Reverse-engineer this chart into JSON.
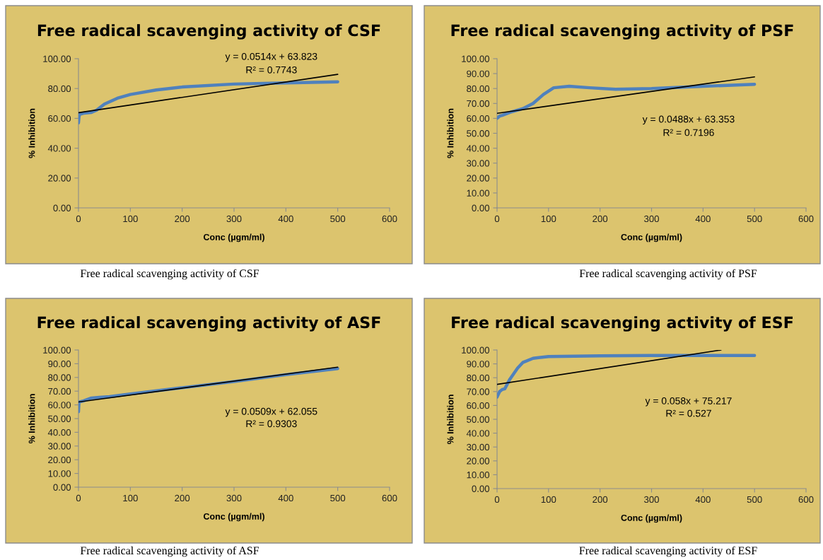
{
  "chart_data": [
    {
      "type": "line",
      "title": "Free radical scavenging activity of CSF",
      "xlabel": "Conc (µgm/ml)",
      "ylabel": "% Inhibition",
      "xlim": [
        0,
        600
      ],
      "xticks": [
        0,
        100,
        200,
        300,
        400,
        500,
        600
      ],
      "ylim": [
        0,
        100
      ],
      "yticks": [
        {
          "value": 0,
          "label": "0.00"
        },
        {
          "value": 20,
          "label": "20.00"
        },
        {
          "value": 40,
          "label": "40.00"
        },
        {
          "value": 60,
          "label": "60.00"
        },
        {
          "value": 80,
          "label": "80.00"
        },
        {
          "value": 100,
          "label": "100.00"
        }
      ],
      "series": [
        {
          "color": "#4f81bd",
          "x": [
            0,
            1,
            2,
            5,
            10,
            25,
            35,
            50,
            75,
            100,
            150,
            200,
            300,
            400,
            500
          ],
          "values": [
            57,
            61,
            62.5,
            63,
            63.5,
            64,
            65.5,
            69.5,
            73.5,
            76,
            79,
            81,
            83,
            83.8,
            84.5
          ]
        },
        {
          "type": "line",
          "color": "#000000",
          "x": [
            0,
            500
          ],
          "values": [
            63.8,
            89.5
          ]
        }
      ],
      "annotations": [
        "y = 0.0514x + 63.823",
        "R² = 0.7743",
        "Free radical scavenging activity of CSF"
      ]
    },
    {
      "type": "line",
      "title": "Free radical scavenging activity of PSF",
      "xlabel": "Conc (µgm/ml)",
      "ylabel": "% Inhibition",
      "xlim": [
        0,
        600
      ],
      "xticks": [
        0,
        100,
        200,
        300,
        400,
        500,
        600
      ],
      "ylim": [
        0,
        100
      ],
      "yticks": [
        {
          "value": 0,
          "label": "0.00"
        },
        {
          "value": 10,
          "label": "10.00"
        },
        {
          "value": 20,
          "label": "20.00"
        },
        {
          "value": 30,
          "label": "30.00"
        },
        {
          "value": 40,
          "label": "40.00"
        },
        {
          "value": 50,
          "label": "50.00"
        },
        {
          "value": 60,
          "label": "60.00"
        },
        {
          "value": 70,
          "label": "70.00"
        },
        {
          "value": 80,
          "label": "80.00"
        },
        {
          "value": 90,
          "label": "90.00"
        },
        {
          "value": 100,
          "label": "100.00"
        }
      ],
      "series": [
        {
          "color": "#4f81bd",
          "x": [
            0,
            5,
            10,
            25,
            50,
            70,
            90,
            110,
            140,
            180,
            230,
            300,
            400,
            500
          ],
          "values": [
            60,
            61.5,
            62,
            64,
            66.5,
            70,
            76,
            80.5,
            81.5,
            80.5,
            79.5,
            80,
            81.5,
            82.8
          ]
        },
        {
          "type": "line",
          "color": "#000000",
          "x": [
            0,
            500
          ],
          "values": [
            63.4,
            87.8
          ]
        }
      ],
      "annotations": [
        "y = 0.0488x + 63.353",
        "R² = 0.7196",
        "Free radical scavenging activity of PSF"
      ]
    },
    {
      "type": "line",
      "title": "Free radical scavenging activity of ASF",
      "xlabel": "Conc (µgm/ml)",
      "ylabel": "% Inhibition",
      "xlim": [
        0,
        600
      ],
      "xticks": [
        0,
        100,
        200,
        300,
        400,
        500,
        600
      ],
      "ylim": [
        0,
        100
      ],
      "yticks": [
        {
          "value": 0,
          "label": "0.00"
        },
        {
          "value": 10,
          "label": "10.00"
        },
        {
          "value": 20,
          "label": "20.00"
        },
        {
          "value": 30,
          "label": "30.00"
        },
        {
          "value": 40,
          "label": "40.00"
        },
        {
          "value": 50,
          "label": "50.00"
        },
        {
          "value": 60,
          "label": "60.00"
        },
        {
          "value": 70,
          "label": "70.00"
        },
        {
          "value": 80,
          "label": "80.00"
        },
        {
          "value": 90,
          "label": "90.00"
        },
        {
          "value": 100,
          "label": "100.00"
        }
      ],
      "series": [
        {
          "color": "#4f81bd",
          "x": [
            0,
            1,
            10,
            25,
            40,
            60,
            100,
            200,
            300,
            400,
            500
          ],
          "values": [
            55,
            62,
            63,
            65,
            65.5,
            66,
            68,
            72.5,
            77,
            82,
            86.5
          ]
        },
        {
          "type": "line",
          "color": "#000000",
          "x": [
            0,
            500
          ],
          "values": [
            62.1,
            87.5
          ]
        }
      ],
      "annotations": [
        "y = 0.0509x + 62.055",
        "R² = 0.9303",
        "Free radical scavenging activity of ASF"
      ]
    },
    {
      "type": "line",
      "title": "Free radical scavenging activity of ESF",
      "xlabel": "Conc (µgm/ml)",
      "ylabel": "% Inhibition",
      "xlim": [
        0,
        600
      ],
      "xticks": [
        0,
        100,
        200,
        300,
        400,
        500,
        600
      ],
      "ylim": [
        0,
        100
      ],
      "yticks": [
        {
          "value": 0,
          "label": "0.00"
        },
        {
          "value": 10,
          "label": "10.00"
        },
        {
          "value": 20,
          "label": "20.00"
        },
        {
          "value": 30,
          "label": "30.00"
        },
        {
          "value": 40,
          "label": "40.00"
        },
        {
          "value": 50,
          "label": "50.00"
        },
        {
          "value": 60,
          "label": "60.00"
        },
        {
          "value": 70,
          "label": "70.00"
        },
        {
          "value": 80,
          "label": "80.00"
        },
        {
          "value": 90,
          "label": "90.00"
        },
        {
          "value": 100,
          "label": "100.00"
        }
      ],
      "series": [
        {
          "color": "#4f81bd",
          "x": [
            0,
            5,
            10,
            15,
            25,
            40,
            50,
            70,
            100,
            200,
            300,
            500
          ],
          "values": [
            66,
            70,
            71.5,
            72,
            79,
            87,
            91,
            94,
            95.3,
            95.8,
            96,
            96
          ]
        },
        {
          "type": "line",
          "color": "#000000",
          "x": [
            0,
            435
          ],
          "values": [
            75.2,
            100
          ]
        }
      ],
      "annotations": [
        "y = 0.058x + 75.217",
        "R² = 0.527",
        "Free radical scavenging activity of ESF"
      ]
    }
  ]
}
